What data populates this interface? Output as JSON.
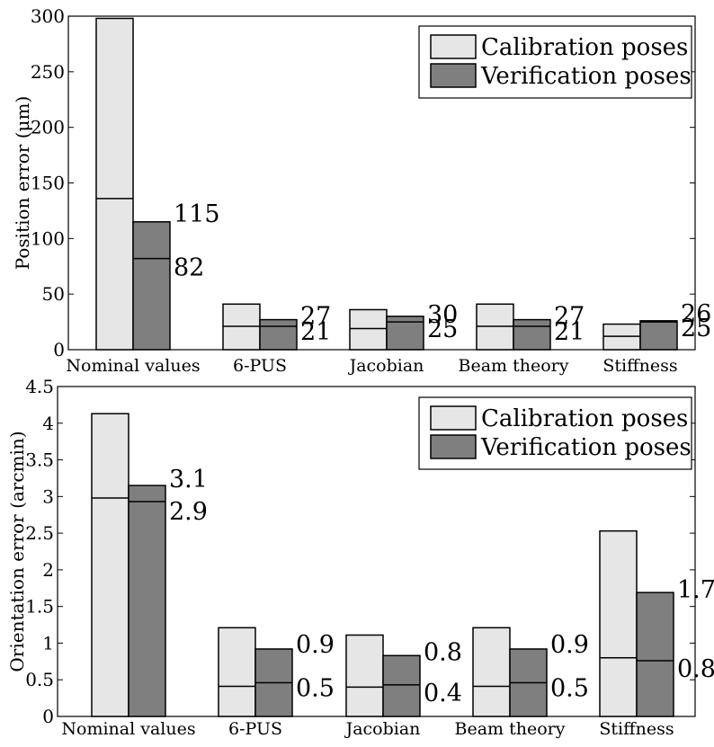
{
  "chart_data": [
    {
      "type": "bar",
      "categories": [
        "Nominal values",
        "6-PUS",
        "Jacobian",
        "Beam theory",
        "Stiffness"
      ],
      "ylabel": "Position error (μm)",
      "ylim": [
        0,
        300
      ],
      "yticks": [
        "0",
        "50",
        "100",
        "150",
        "200",
        "250",
        "300"
      ],
      "legend_position": "top-right",
      "legend": [
        "Calibration poses",
        "Verification poses"
      ],
      "series": [
        {
          "name": "Calibration poses",
          "color": "#e6e6e6",
          "max_values": [
            298,
            41,
            36,
            41,
            23
          ],
          "mean_values": [
            136,
            21,
            19,
            21,
            12
          ]
        },
        {
          "name": "Verification poses",
          "color": "#7f7f7f",
          "max_values": [
            115,
            27,
            30,
            27,
            26
          ],
          "mean_values": [
            82,
            21,
            25,
            21,
            25
          ]
        }
      ],
      "value_labels": [
        {
          "category": 0,
          "top": "115",
          "bottom": "82"
        },
        {
          "category": 1,
          "top": "27",
          "bottom": "21"
        },
        {
          "category": 2,
          "top": "30",
          "bottom": "25"
        },
        {
          "category": 3,
          "top": "27",
          "bottom": "21"
        },
        {
          "category": 4,
          "top": "26",
          "bottom": "25"
        }
      ]
    },
    {
      "type": "bar",
      "categories": [
        "Nominal values",
        "6-PUS",
        "Jacobian",
        "Beam theory",
        "Stiffness"
      ],
      "ylabel": "Orientation error (arcmin)",
      "ylim": [
        0,
        4.5
      ],
      "yticks": [
        "0",
        "0.5",
        "1",
        "1.5",
        "2",
        "2.5",
        "3",
        "3.5",
        "4",
        "4.5"
      ],
      "legend_position": "top-right",
      "legend": [
        "Calibration poses",
        "Verification poses"
      ],
      "series": [
        {
          "name": "Calibration poses",
          "color": "#e6e6e6",
          "max_values": [
            4.13,
            1.21,
            1.11,
            1.21,
            2.53
          ],
          "mean_values": [
            2.98,
            0.41,
            0.4,
            0.41,
            0.8
          ]
        },
        {
          "name": "Verification poses",
          "color": "#7f7f7f",
          "max_values": [
            3.15,
            0.92,
            0.83,
            0.92,
            1.69
          ],
          "mean_values": [
            2.93,
            0.46,
            0.43,
            0.46,
            0.76
          ]
        }
      ],
      "value_labels": [
        {
          "category": 0,
          "top": "3.1",
          "bottom": "2.9"
        },
        {
          "category": 1,
          "top": "0.9",
          "bottom": "0.5"
        },
        {
          "category": 2,
          "top": "0.8",
          "bottom": "0.4"
        },
        {
          "category": 3,
          "top": "0.9",
          "bottom": "0.5"
        },
        {
          "category": 4,
          "top": "1.7",
          "bottom": "0.8"
        }
      ]
    }
  ]
}
